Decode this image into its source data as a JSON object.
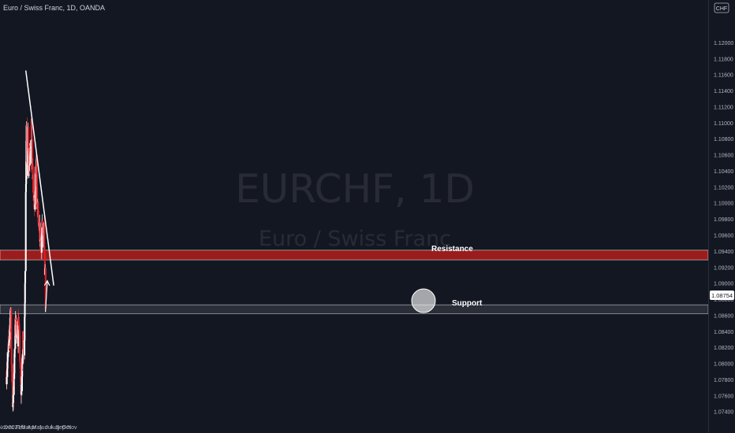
{
  "header": {
    "title": "Euro / Swiss Franc, 1D, OANDA"
  },
  "currency_badge": "CHF",
  "watermark": {
    "symbol": "EURCHF, 1D",
    "name": "Euro / Swiss Franc"
  },
  "colors": {
    "background": "#131722",
    "up": "#ffffff",
    "down": "#e01f26",
    "resistance_zone": "#9b1c1c",
    "support_zone": "#2a2e39",
    "axis_text": "#b2b5be",
    "last_price_bg": "#ffffff"
  },
  "annotations": {
    "resistance_label": "Resistance",
    "support_label": "Support",
    "last_price": "1.08754"
  },
  "chart_data": {
    "type": "candlestick",
    "title": "Euro / Swiss Franc, 1D, OANDA",
    "ylim": [
      1.0725,
      1.1245
    ],
    "y_ticks": [
      "1.07400",
      "1.07600",
      "1.07800",
      "1.08000",
      "1.08200",
      "1.08400",
      "1.08600",
      "1.08800",
      "1.09000",
      "1.09200",
      "1.09400",
      "1.09600",
      "1.09800",
      "1.10000",
      "1.10200",
      "1.10400",
      "1.10600",
      "1.10800",
      "1.11000",
      "1.11200",
      "1.11400",
      "1.11600",
      "1.11800",
      "1.12000"
    ],
    "x_ticks": [
      "Nov",
      "Dec",
      "2021",
      "Feb",
      "Mar",
      "Apr",
      "May",
      "Jun",
      "Jul",
      "Aug",
      "Sep",
      "Oct",
      "Nov"
    ],
    "grid": false,
    "resistance_zone": [
      1.0929,
      1.0941
    ],
    "support_zone": [
      1.0862,
      1.0873
    ],
    "trendline": {
      "from": [
        "2021-03-01",
        1.1165
      ],
      "to": [
        "2021-07-27",
        1.0897
      ]
    },
    "projection_arrow": {
      "from": [
        "2021-06-13",
        1.0864
      ],
      "to": [
        "2021-06-23",
        1.0903
      ]
    },
    "last_price": 1.08754,
    "segments": [
      {
        "start": "2020-11-19",
        "end": "2020-11-30",
        "from": 1.079,
        "to": 1.0815,
        "lo": 1.072,
        "hi": 1.0835
      },
      {
        "start": "2020-11-30",
        "end": "2020-12-10",
        "from": 1.0815,
        "to": 1.0865,
        "lo": 1.08,
        "hi": 1.0875
      },
      {
        "start": "2020-12-10",
        "end": "2020-12-22",
        "from": 1.0865,
        "to": 1.0745,
        "lo": 1.0738,
        "hi": 1.087
      },
      {
        "start": "2020-12-22",
        "end": "2021-01-06",
        "from": 1.0745,
        "to": 1.085,
        "lo": 1.074,
        "hi": 1.0875
      },
      {
        "start": "2021-01-06",
        "end": "2021-01-12",
        "from": 1.085,
        "to": 1.084,
        "lo": 1.08,
        "hi": 1.0892
      },
      {
        "start": "2021-01-12",
        "end": "2021-01-19",
        "from": 1.084,
        "to": 1.083,
        "lo": 1.0805,
        "hi": 1.087
      },
      {
        "start": "2021-01-19",
        "end": "2021-01-22",
        "from": 1.083,
        "to": 1.086,
        "lo": 1.08,
        "hi": 1.087
      },
      {
        "start": "2021-01-22",
        "end": "2021-02-03",
        "from": 1.086,
        "to": 1.0765,
        "lo": 1.074,
        "hi": 1.087
      },
      {
        "start": "2021-02-03",
        "end": "2021-02-08",
        "from": 1.0765,
        "to": 1.0775,
        "lo": 1.0745,
        "hi": 1.08
      },
      {
        "start": "2021-02-08",
        "end": "2021-02-15",
        "from": 1.0775,
        "to": 1.0835,
        "lo": 1.076,
        "hi": 1.0845
      },
      {
        "start": "2021-02-15",
        "end": "2021-02-22",
        "from": 1.0835,
        "to": 1.0815,
        "lo": 1.08,
        "hi": 1.084
      },
      {
        "start": "2021-02-22",
        "end": "2021-02-25",
        "from": 1.0815,
        "to": 1.09,
        "lo": 1.0805,
        "hi": 1.0905
      },
      {
        "start": "2021-02-25",
        "end": "2021-03-01",
        "from": 1.09,
        "to": 1.101,
        "lo": 1.09,
        "hi": 1.1025
      },
      {
        "start": "2021-03-01",
        "end": "2021-03-03",
        "from": 1.101,
        "to": 1.106,
        "lo": 1.096,
        "hi": 1.108
      },
      {
        "start": "2021-03-03",
        "end": "2021-03-05",
        "from": 1.106,
        "to": 1.11,
        "lo": 1.103,
        "hi": 1.1105
      },
      {
        "start": "2021-03-05",
        "end": "2021-03-09",
        "from": 1.11,
        "to": 1.1045,
        "lo": 1.1,
        "hi": 1.1145
      },
      {
        "start": "2021-03-09",
        "end": "2021-03-12",
        "from": 1.1045,
        "to": 1.109,
        "lo": 1.103,
        "hi": 1.111
      },
      {
        "start": "2021-03-12",
        "end": "2021-03-16",
        "from": 1.109,
        "to": 1.104,
        "lo": 1.102,
        "hi": 1.11
      },
      {
        "start": "2021-03-16",
        "end": "2021-03-23",
        "from": 1.104,
        "to": 1.106,
        "lo": 1.102,
        "hi": 1.108
      },
      {
        "start": "2021-03-23",
        "end": "2021-03-30",
        "from": 1.106,
        "to": 1.105,
        "lo": 1.1015,
        "hi": 1.1085
      },
      {
        "start": "2021-03-30",
        "end": "2021-04-01",
        "from": 1.105,
        "to": 1.11,
        "lo": 1.104,
        "hi": 1.112
      },
      {
        "start": "2021-04-01",
        "end": "2021-04-08",
        "from": 1.11,
        "to": 1.102,
        "lo": 1.1,
        "hi": 1.1105
      },
      {
        "start": "2021-04-08",
        "end": "2021-04-15",
        "from": 1.102,
        "to": 1.0985,
        "lo": 1.097,
        "hi": 1.1045
      },
      {
        "start": "2021-04-15",
        "end": "2021-04-20",
        "from": 1.0985,
        "to": 1.1035,
        "lo": 1.097,
        "hi": 1.105
      },
      {
        "start": "2021-04-20",
        "end": "2021-04-23",
        "from": 1.1035,
        "to": 1.101,
        "lo": 1.099,
        "hi": 1.1045
      },
      {
        "start": "2021-04-23",
        "end": "2021-04-27",
        "from": 1.101,
        "to": 1.105,
        "lo": 1.0995,
        "hi": 1.1068
      },
      {
        "start": "2021-04-27",
        "end": "2021-04-30",
        "from": 1.105,
        "to": 1.1,
        "lo": 1.099,
        "hi": 1.1062
      },
      {
        "start": "2021-04-30",
        "end": "2021-05-05",
        "from": 1.1,
        "to": 1.0985,
        "lo": 1.097,
        "hi": 1.1015
      },
      {
        "start": "2021-05-05",
        "end": "2021-05-11",
        "from": 1.0985,
        "to": 1.0955,
        "lo": 1.093,
        "hi": 1.0995
      },
      {
        "start": "2021-05-11",
        "end": "2021-05-14",
        "from": 1.0955,
        "to": 1.0965,
        "lo": 1.0932,
        "hi": 1.0985
      },
      {
        "start": "2021-05-14",
        "end": "2021-05-20",
        "from": 1.0965,
        "to": 1.095,
        "lo": 1.0935,
        "hi": 1.0975
      },
      {
        "start": "2021-05-20",
        "end": "2021-05-26",
        "from": 1.095,
        "to": 1.0965,
        "lo": 1.093,
        "hi": 1.1
      },
      {
        "start": "2021-05-26",
        "end": "2021-06-01",
        "from": 1.0965,
        "to": 1.095,
        "lo": 1.093,
        "hi": 1.099
      },
      {
        "start": "2021-06-01",
        "end": "2021-06-04",
        "from": 1.095,
        "to": 1.097,
        "lo": 1.0935,
        "hi": 1.1
      },
      {
        "start": "2021-06-04",
        "end": "2021-06-08",
        "from": 1.097,
        "to": 1.095,
        "lo": 1.0935,
        "hi": 1.099
      },
      {
        "start": "2021-06-08",
        "end": "2021-06-14",
        "from": 1.095,
        "to": 1.0878,
        "lo": 1.087,
        "hi": 1.096
      },
      {
        "start": "2021-06-14",
        "end": "2021-06-15",
        "from": 1.0878,
        "to": 1.0875,
        "lo": 1.0868,
        "hi": 1.0885
      }
    ]
  }
}
